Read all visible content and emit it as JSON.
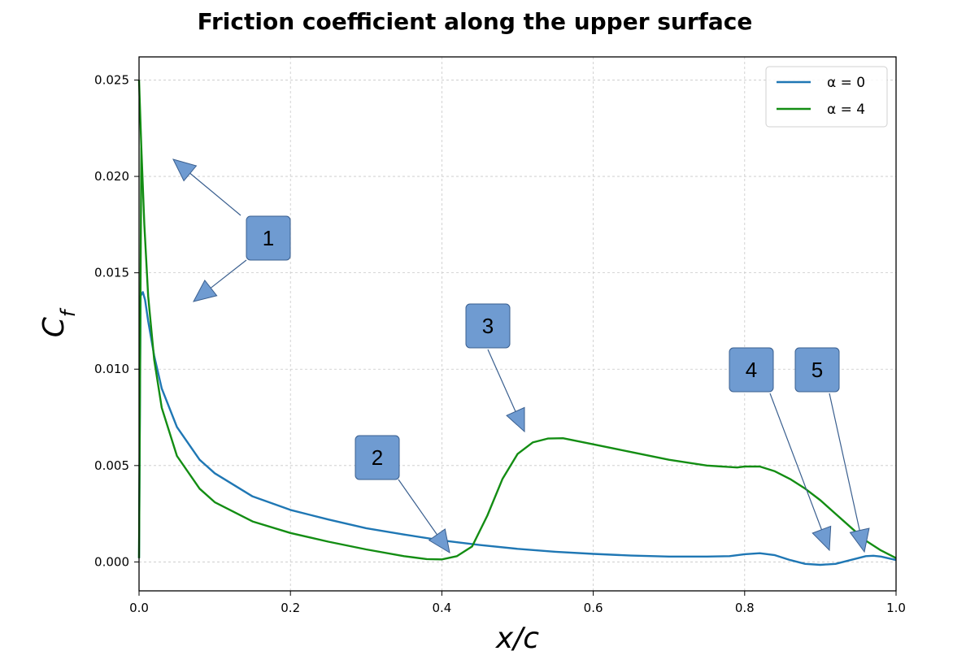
{
  "chart_data": {
    "type": "line",
    "title": "Friction coefficient along the upper surface",
    "xlabel": "x/c",
    "ylabel": "C_f",
    "xlim": [
      0.0,
      1.0
    ],
    "ylim": [
      -0.0015,
      0.0262
    ],
    "x_ticks": [
      "0.0",
      "0.2",
      "0.4",
      "0.6",
      "0.8",
      "1.0"
    ],
    "y_ticks": [
      "0.000",
      "0.005",
      "0.010",
      "0.015",
      "0.020",
      "0.025"
    ],
    "grid": true,
    "legend_position": "top-right",
    "series": [
      {
        "name": "α = 0",
        "color": "#1f77b4",
        "points": [
          [
            0.0,
            0.0002
          ],
          [
            0.002,
            0.0138
          ],
          [
            0.005,
            0.014
          ],
          [
            0.008,
            0.0136
          ],
          [
            0.012,
            0.0125
          ],
          [
            0.02,
            0.0107
          ],
          [
            0.03,
            0.009
          ],
          [
            0.05,
            0.007
          ],
          [
            0.08,
            0.0053
          ],
          [
            0.1,
            0.0046
          ],
          [
            0.15,
            0.0034
          ],
          [
            0.2,
            0.0027
          ],
          [
            0.25,
            0.0022
          ],
          [
            0.3,
            0.00175
          ],
          [
            0.35,
            0.00142
          ],
          [
            0.4,
            0.00112
          ],
          [
            0.45,
            0.00088
          ],
          [
            0.5,
            0.00068
          ],
          [
            0.55,
            0.00053
          ],
          [
            0.6,
            0.00042
          ],
          [
            0.65,
            0.00033
          ],
          [
            0.7,
            0.00028
          ],
          [
            0.75,
            0.00028
          ],
          [
            0.78,
            0.0003
          ],
          [
            0.8,
            0.0004
          ],
          [
            0.82,
            0.00045
          ],
          [
            0.84,
            0.00035
          ],
          [
            0.86,
            0.0001
          ],
          [
            0.88,
            -0.0001
          ],
          [
            0.9,
            -0.00015
          ],
          [
            0.92,
            -0.0001
          ],
          [
            0.94,
            0.0001
          ],
          [
            0.96,
            0.0003
          ],
          [
            0.97,
            0.00032
          ],
          [
            0.98,
            0.00028
          ],
          [
            1.0,
            0.0001
          ]
        ]
      },
      {
        "name": "α = 4",
        "color": "#138d13",
        "points": [
          [
            0.0,
            0.025
          ],
          [
            0.003,
            0.0215
          ],
          [
            0.007,
            0.0175
          ],
          [
            0.012,
            0.0138
          ],
          [
            0.02,
            0.0105
          ],
          [
            0.03,
            0.008
          ],
          [
            0.05,
            0.0055
          ],
          [
            0.08,
            0.0038
          ],
          [
            0.1,
            0.0031
          ],
          [
            0.15,
            0.0021
          ],
          [
            0.2,
            0.0015
          ],
          [
            0.25,
            0.00105
          ],
          [
            0.3,
            0.00065
          ],
          [
            0.35,
            0.0003
          ],
          [
            0.38,
            0.00015
          ],
          [
            0.4,
            0.00013
          ],
          [
            0.42,
            0.0003
          ],
          [
            0.44,
            0.0008
          ],
          [
            0.46,
            0.0024
          ],
          [
            0.48,
            0.0043
          ],
          [
            0.5,
            0.0056
          ],
          [
            0.52,
            0.0062
          ],
          [
            0.54,
            0.0064
          ],
          [
            0.56,
            0.00642
          ],
          [
            0.6,
            0.0061
          ],
          [
            0.65,
            0.0057
          ],
          [
            0.7,
            0.0053
          ],
          [
            0.75,
            0.005
          ],
          [
            0.79,
            0.0049
          ],
          [
            0.8,
            0.00495
          ],
          [
            0.82,
            0.00495
          ],
          [
            0.84,
            0.0047
          ],
          [
            0.86,
            0.0043
          ],
          [
            0.88,
            0.0038
          ],
          [
            0.9,
            0.0032
          ],
          [
            0.92,
            0.0025
          ],
          [
            0.94,
            0.0018
          ],
          [
            0.96,
            0.0011
          ],
          [
            0.98,
            0.0006
          ],
          [
            1.0,
            0.0002
          ]
        ]
      },
      {
        "name": "",
        "color": "#138d13",
        "points": [
          [
            0.0,
            0.0002
          ],
          [
            0.0015,
            0.011
          ],
          [
            0.003,
            0.0215
          ]
        ]
      }
    ],
    "callouts": [
      {
        "label": "1"
      },
      {
        "label": "2"
      },
      {
        "label": "3"
      },
      {
        "label": "4"
      },
      {
        "label": "5"
      }
    ],
    "callout_color": "#6f9bd1",
    "grid_color": "#c8c8c8"
  }
}
